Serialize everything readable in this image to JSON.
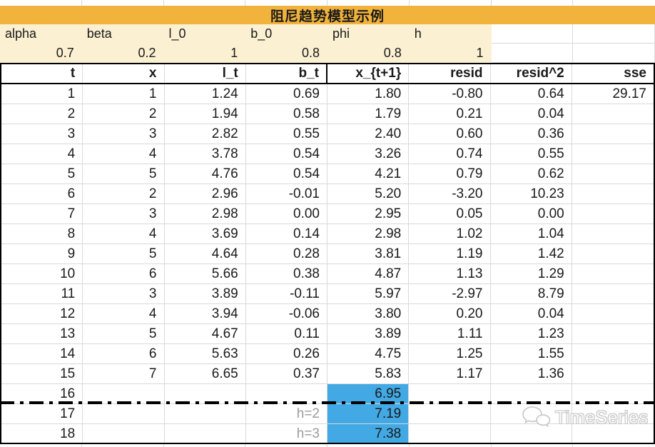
{
  "title": "阻尼趋势模型示例",
  "colors": {
    "title_bg": "#F2B33C",
    "param_bg": "#FBF0D1",
    "highlight": "#42A9E4",
    "gridline": "#D9D9D9",
    "muted_text": "#9B9B9B"
  },
  "params": {
    "labels": [
      "alpha",
      "beta",
      "l_0",
      "b_0",
      "phi",
      "h"
    ],
    "values": [
      "0.7",
      "0.2",
      "1",
      "0.8",
      "0.8",
      "1"
    ]
  },
  "table": {
    "columns": [
      "t",
      "x",
      "l_t",
      "b_t",
      "x_{t+1}",
      "resid",
      "resid^2",
      "sse"
    ],
    "rows": [
      [
        "1",
        "1",
        "1.24",
        "0.69",
        "1.80",
        "-0.80",
        "0.64",
        "29.17"
      ],
      [
        "2",
        "2",
        "1.94",
        "0.58",
        "1.79",
        "0.21",
        "0.04",
        ""
      ],
      [
        "3",
        "3",
        "2.82",
        "0.55",
        "2.40",
        "0.60",
        "0.36",
        ""
      ],
      [
        "4",
        "4",
        "3.78",
        "0.54",
        "3.26",
        "0.74",
        "0.55",
        ""
      ],
      [
        "5",
        "5",
        "4.76",
        "0.54",
        "4.21",
        "0.79",
        "0.62",
        ""
      ],
      [
        "6",
        "2",
        "2.96",
        "-0.01",
        "5.20",
        "-3.20",
        "10.23",
        ""
      ],
      [
        "7",
        "3",
        "2.98",
        "0.00",
        "2.95",
        "0.05",
        "0.00",
        ""
      ],
      [
        "8",
        "4",
        "3.69",
        "0.14",
        "2.98",
        "1.02",
        "1.04",
        ""
      ],
      [
        "9",
        "5",
        "4.64",
        "0.28",
        "3.81",
        "1.19",
        "1.42",
        ""
      ],
      [
        "10",
        "6",
        "5.66",
        "0.38",
        "4.87",
        "1.13",
        "1.29",
        ""
      ],
      [
        "11",
        "3",
        "3.89",
        "-0.11",
        "5.97",
        "-2.97",
        "8.79",
        ""
      ],
      [
        "12",
        "4",
        "3.94",
        "-0.06",
        "3.80",
        "0.20",
        "0.04",
        ""
      ],
      [
        "13",
        "5",
        "4.67",
        "0.11",
        "3.89",
        "1.11",
        "1.23",
        ""
      ],
      [
        "14",
        "6",
        "5.63",
        "0.26",
        "4.75",
        "1.25",
        "1.55",
        ""
      ],
      [
        "15",
        "7",
        "6.65",
        "0.37",
        "5.83",
        "1.17",
        "1.36",
        ""
      ],
      [
        "16",
        "",
        "",
        "",
        "6.95",
        "",
        "",
        ""
      ],
      [
        "17",
        "",
        "",
        "h=2",
        "7.19",
        "",
        "",
        ""
      ],
      [
        "18",
        "",
        "",
        "h=3",
        "7.38",
        "",
        "",
        ""
      ]
    ],
    "highlight_col": 4,
    "highlight_rows": [
      15,
      16,
      17
    ],
    "muted_cells": [
      [
        16,
        3
      ],
      [
        17,
        3
      ]
    ]
  },
  "watermark": {
    "label": "TimeSeries",
    "icon": "wechat-chat-bubbles"
  }
}
